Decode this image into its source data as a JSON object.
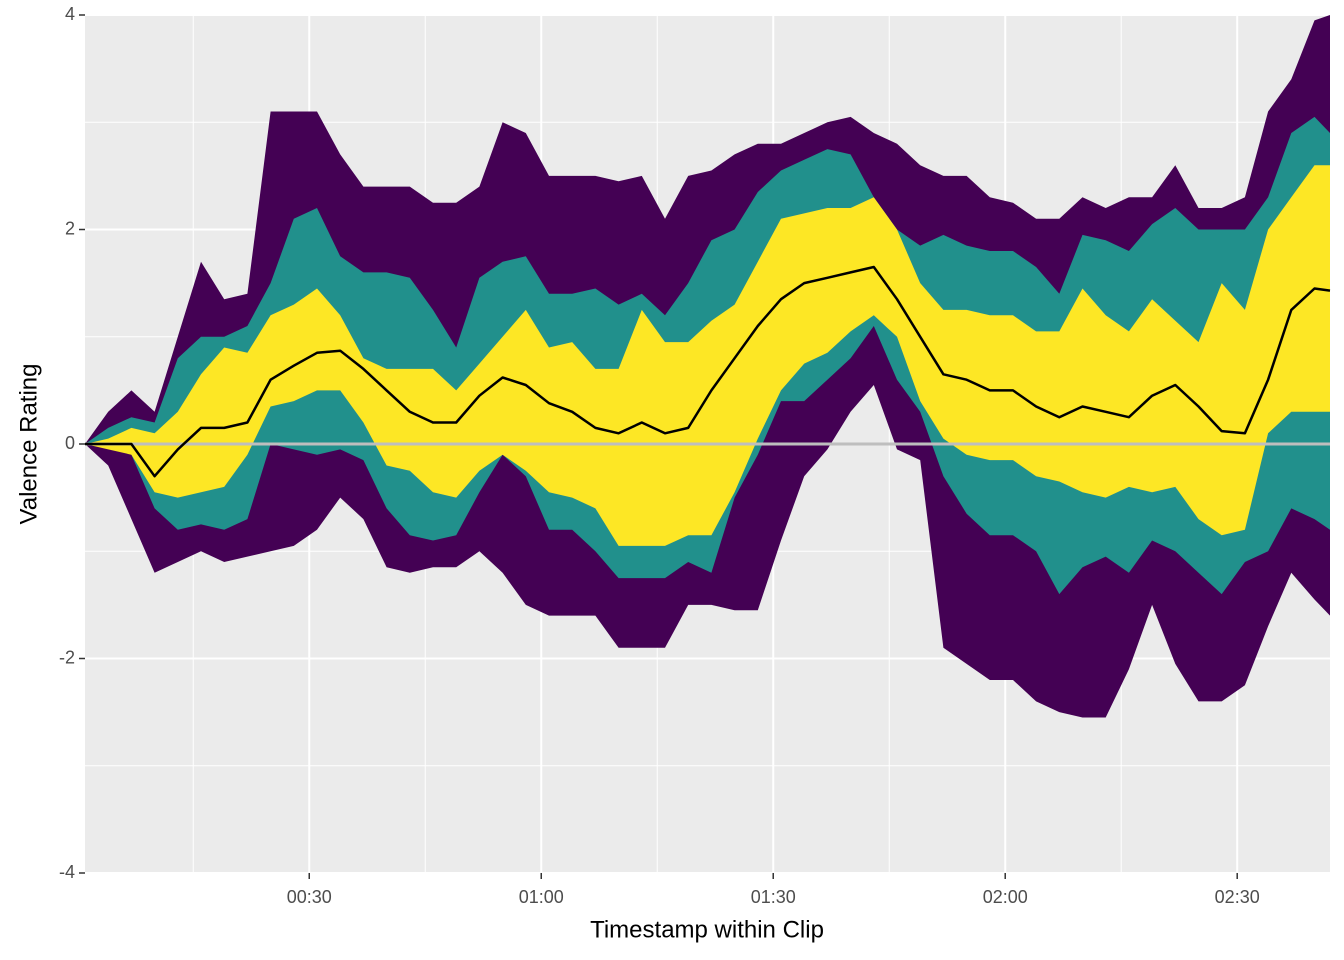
{
  "chart_data": {
    "type": "ribbon",
    "x_label": "Timestamp within Clip",
    "y_label": "Valence Rating",
    "x": [
      1,
      4,
      7,
      10,
      13,
      16,
      19,
      22,
      25,
      28,
      31,
      34,
      37,
      40,
      43,
      46,
      49,
      52,
      55,
      58,
      61,
      64,
      67,
      70,
      73,
      76,
      79,
      82,
      85,
      88,
      91,
      94,
      97,
      100,
      103,
      106,
      109,
      112,
      115,
      118,
      121,
      124,
      127,
      130,
      133,
      136,
      139,
      142,
      145,
      148,
      151,
      154,
      157,
      160,
      162
    ],
    "xlim": [
      1,
      162
    ],
    "xticks": [
      {
        "value": 30,
        "label": "00:30"
      },
      {
        "value": 60,
        "label": "01:00"
      },
      {
        "value": 90,
        "label": "01:30"
      },
      {
        "value": 120,
        "label": "02:00"
      },
      {
        "value": 150,
        "label": "02:30"
      }
    ],
    "xminorticks": [
      15,
      45,
      75,
      105,
      135
    ],
    "ylim": [
      -4,
      4
    ],
    "yticks": [
      -4,
      -2,
      0,
      2,
      4
    ],
    "yminorticks": [
      -3,
      -1,
      1,
      3
    ],
    "grid": true,
    "ribbons": [
      {
        "color": "#440154",
        "upper": [
          0,
          0.3,
          0.5,
          0.3,
          1.0,
          1.7,
          1.35,
          1.4,
          3.1,
          3.1,
          3.1,
          2.7,
          2.4,
          2.4,
          2.4,
          2.25,
          2.25,
          2.4,
          3.0,
          2.9,
          2.5,
          2.5,
          2.5,
          2.45,
          2.5,
          2.1,
          2.5,
          2.55,
          2.7,
          2.8,
          2.8,
          2.9,
          3.0,
          3.05,
          2.9,
          2.8,
          2.6,
          2.5,
          2.5,
          2.3,
          2.25,
          2.1,
          2.1,
          2.3,
          2.2,
          2.3,
          2.3,
          2.6,
          2.2,
          2.2,
          2.3,
          3.1,
          3.4,
          3.95,
          4.0
        ],
        "lower": [
          0,
          -0.2,
          -0.7,
          -1.2,
          -1.1,
          -1.0,
          -1.1,
          -1.05,
          -1.0,
          -0.95,
          -0.8,
          -0.5,
          -0.7,
          -1.15,
          -1.2,
          -1.15,
          -1.15,
          -1.0,
          -1.2,
          -1.5,
          -1.6,
          -1.6,
          -1.6,
          -1.9,
          -1.9,
          -1.9,
          -1.5,
          -1.5,
          -1.55,
          -1.55,
          -0.9,
          -0.3,
          -0.05,
          0.3,
          0.55,
          -0.05,
          -0.15,
          -1.9,
          -2.05,
          -2.2,
          -2.2,
          -2.4,
          -2.5,
          -2.55,
          -2.55,
          -2.1,
          -1.5,
          -2.05,
          -2.4,
          -2.4,
          -2.25,
          -1.7,
          -1.2,
          -1.45,
          -1.6
        ]
      },
      {
        "color": "#21908C",
        "upper": [
          0,
          0.15,
          0.25,
          0.2,
          0.8,
          1.0,
          1.0,
          1.1,
          1.5,
          2.1,
          2.2,
          1.75,
          1.6,
          1.6,
          1.55,
          1.25,
          0.9,
          1.55,
          1.7,
          1.75,
          1.4,
          1.4,
          1.45,
          1.3,
          1.4,
          1.2,
          1.5,
          1.9,
          2.0,
          2.35,
          2.55,
          2.65,
          2.75,
          2.7,
          2.3,
          2.0,
          1.85,
          1.95,
          1.85,
          1.8,
          1.8,
          1.65,
          1.4,
          1.95,
          1.9,
          1.8,
          2.05,
          2.2,
          2.0,
          2.0,
          2.0,
          2.3,
          2.9,
          3.05,
          2.9
        ],
        "lower": [
          0,
          0,
          -0.1,
          -0.6,
          -0.8,
          -0.75,
          -0.8,
          -0.7,
          0,
          -0.05,
          -0.1,
          -0.05,
          -0.15,
          -0.6,
          -0.85,
          -0.9,
          -0.85,
          -0.45,
          -0.1,
          -0.3,
          -0.8,
          -0.8,
          -1.0,
          -1.25,
          -1.25,
          -1.25,
          -1.1,
          -1.2,
          -0.5,
          -0.1,
          0.4,
          0.4,
          0.6,
          0.8,
          1.1,
          0.6,
          0.3,
          -0.3,
          -0.65,
          -0.85,
          -0.85,
          -1.0,
          -1.4,
          -1.15,
          -1.05,
          -1.2,
          -0.9,
          -1.0,
          -1.2,
          -1.4,
          -1.1,
          -1.0,
          -0.6,
          -0.7,
          -0.8
        ]
      },
      {
        "color": "#FDE725",
        "upper": [
          0,
          0.05,
          0.15,
          0.1,
          0.3,
          0.65,
          0.9,
          0.85,
          1.2,
          1.3,
          1.45,
          1.2,
          0.8,
          0.7,
          0.7,
          0.7,
          0.5,
          0.75,
          1.0,
          1.25,
          0.9,
          0.95,
          0.7,
          0.7,
          1.25,
          0.95,
          0.95,
          1.15,
          1.3,
          1.7,
          2.1,
          2.15,
          2.2,
          2.2,
          2.3,
          2.0,
          1.5,
          1.25,
          1.25,
          1.2,
          1.2,
          1.05,
          1.05,
          1.45,
          1.2,
          1.05,
          1.35,
          1.15,
          0.95,
          1.5,
          1.25,
          2.0,
          2.3,
          2.6,
          2.6
        ],
        "lower": [
          0,
          -0.05,
          -0.1,
          -0.45,
          -0.5,
          -0.45,
          -0.4,
          -0.1,
          0.35,
          0.4,
          0.5,
          0.5,
          0.2,
          -0.2,
          -0.25,
          -0.45,
          -0.5,
          -0.25,
          -0.1,
          -0.25,
          -0.45,
          -0.5,
          -0.6,
          -0.95,
          -0.95,
          -0.95,
          -0.85,
          -0.85,
          -0.45,
          0.05,
          0.5,
          0.75,
          0.85,
          1.05,
          1.2,
          1.0,
          0.4,
          0.05,
          -0.1,
          -0.15,
          -0.15,
          -0.3,
          -0.35,
          -0.45,
          -0.5,
          -0.4,
          -0.45,
          -0.4,
          -0.7,
          -0.85,
          -0.8,
          0.1,
          0.3,
          0.3,
          0.3
        ]
      }
    ],
    "line": {
      "color": "#000000",
      "values": [
        0,
        0,
        0,
        -0.3,
        -0.05,
        0.15,
        0.15,
        0.2,
        0.6,
        0.73,
        0.85,
        0.87,
        0.7,
        0.5,
        0.3,
        0.2,
        0.2,
        0.45,
        0.62,
        0.55,
        0.38,
        0.3,
        0.15,
        0.1,
        0.2,
        0.1,
        0.15,
        0.5,
        0.8,
        1.1,
        1.35,
        1.5,
        1.55,
        1.6,
        1.65,
        1.35,
        1.0,
        0.65,
        0.6,
        0.5,
        0.5,
        0.35,
        0.25,
        0.35,
        0.3,
        0.25,
        0.45,
        0.55,
        0.35,
        0.12,
        0.1,
        0.6,
        1.25,
        1.45,
        1.43
      ]
    },
    "hline": {
      "value": 0,
      "color": "#BEBEBE"
    }
  }
}
